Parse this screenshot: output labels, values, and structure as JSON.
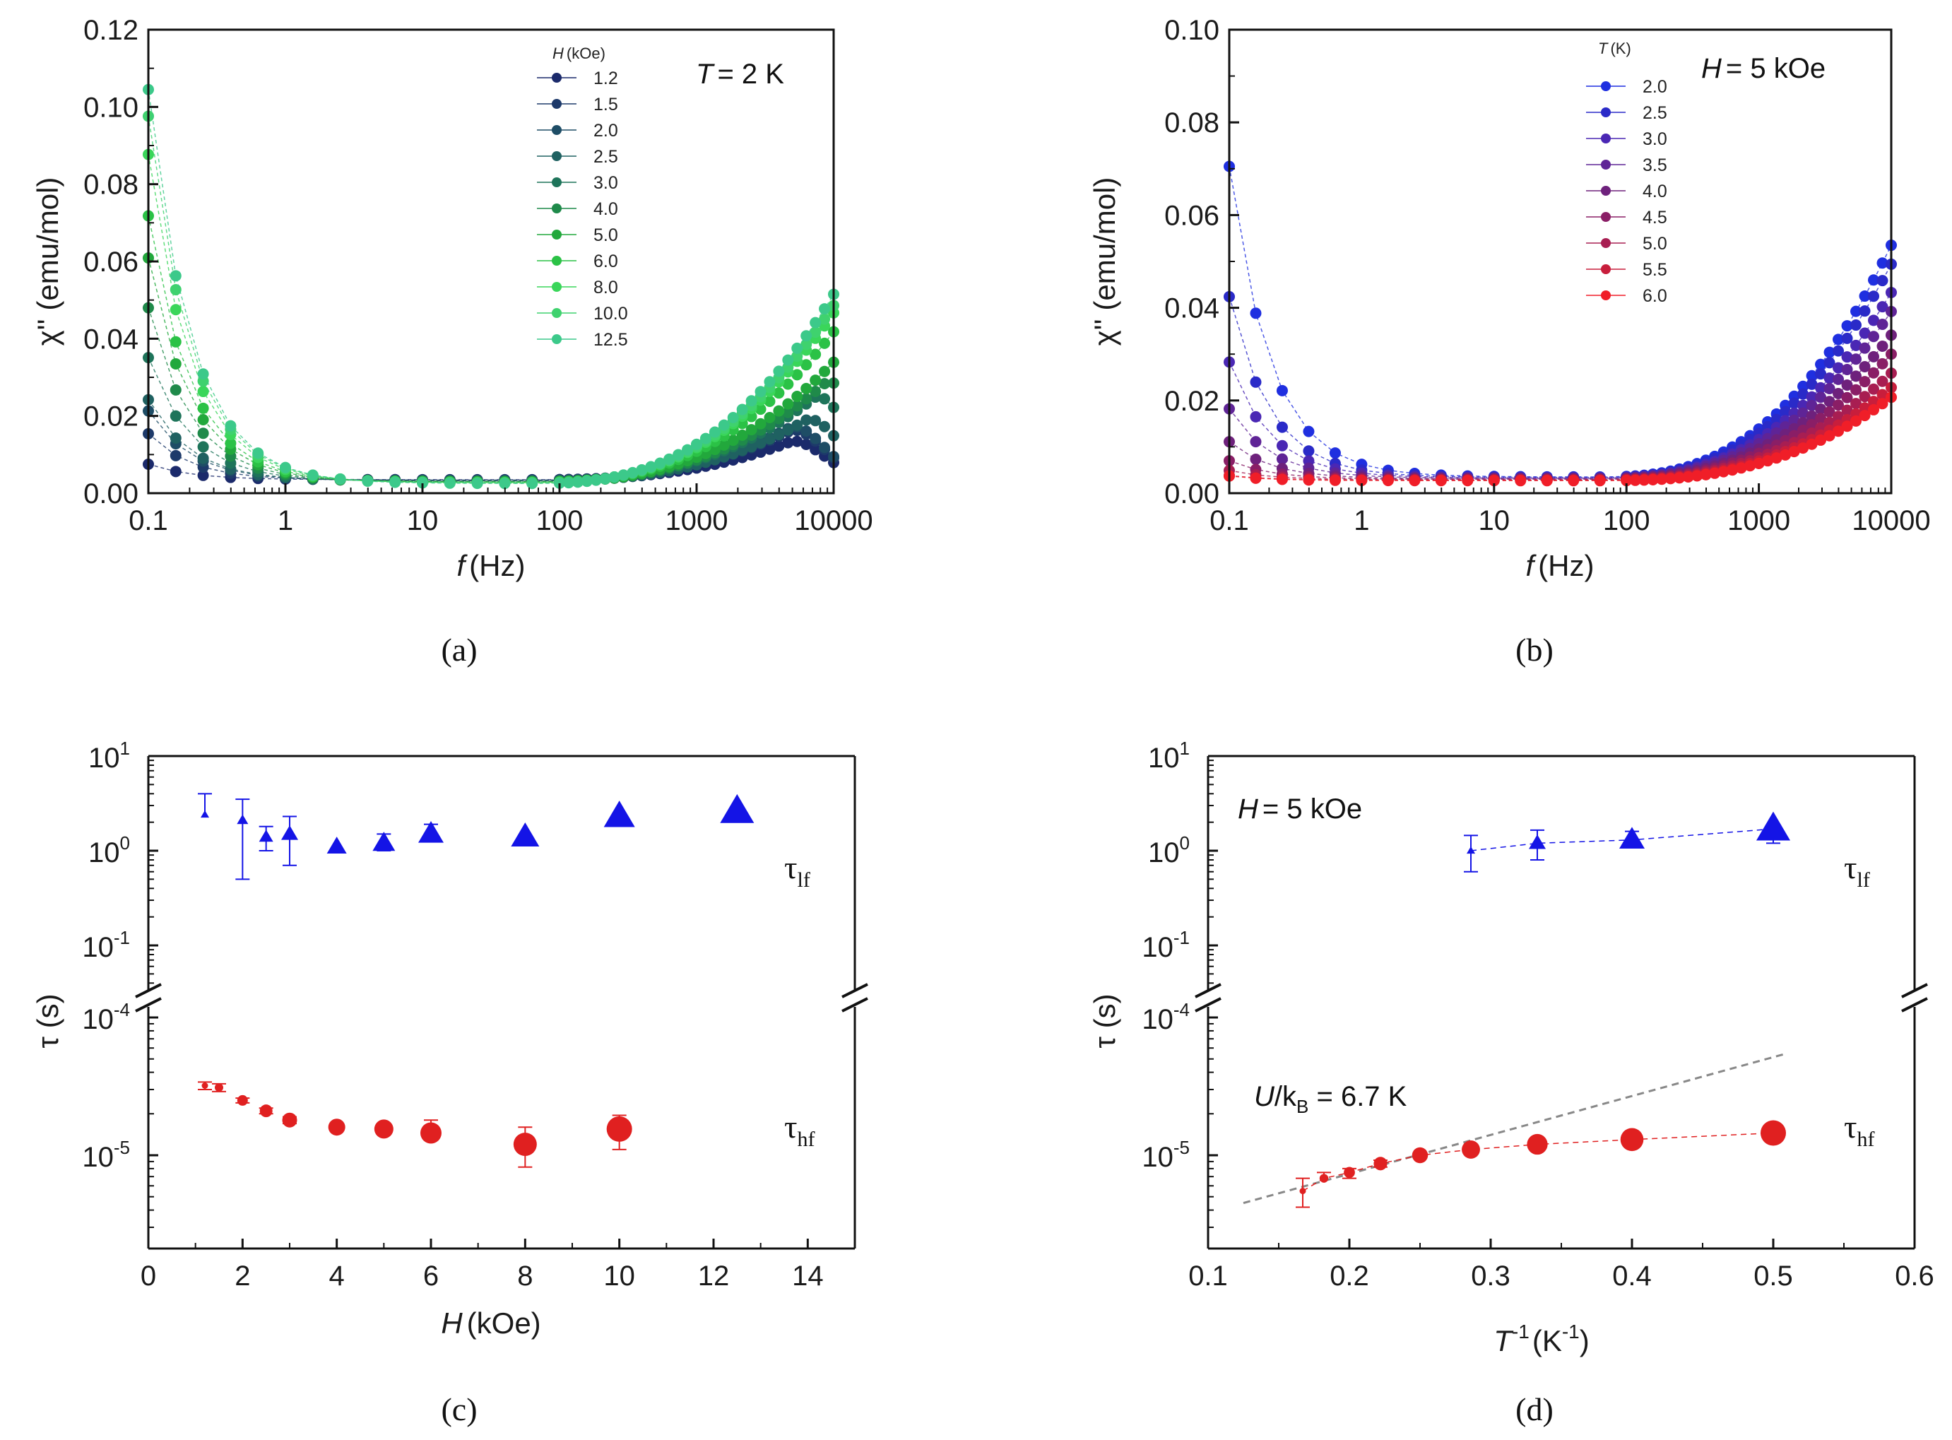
{
  "chart_data": [
    {
      "panel": "(a)",
      "type": "scatter",
      "xscale": "log",
      "xlim": [
        0.1,
        10000
      ],
      "ylim": [
        0.0,
        0.12
      ],
      "xticks": [
        "0.1",
        "1",
        "10",
        "100",
        "1000",
        "10000"
      ],
      "yticks": [
        "0.00",
        "0.02",
        "0.04",
        "0.06",
        "0.08",
        "0.10",
        "0.12"
      ],
      "xlabel_var": "f",
      "xlabel_unit": "(Hz)",
      "ylabel": "χ'' (emu/mol)",
      "annotation_var": "T",
      "annotation_val": "= 2 K",
      "legend_title_var": "H",
      "legend_title_unit": "(kOe)",
      "series": [
        {
          "name": "1.2",
          "color": "#1b2a6b",
          "low": [
            0.004,
            0.007,
            0.004,
            0.003
          ],
          "high": 0.01,
          "peak": 5000
        },
        {
          "name": "1.5",
          "color": "#1d3a6a",
          "low": [
            0.012,
            0.008,
            0.005,
            0.003
          ],
          "high": 0.013,
          "peak": 5000
        },
        {
          "name": "2.0",
          "color": "#1e4d66",
          "low": [
            0.018,
            0.01,
            0.006,
            0.003
          ],
          "high": 0.014,
          "peak": 5000
        },
        {
          "name": "2.5",
          "color": "#1f6161",
          "low": [
            0.021,
            0.012,
            0.007,
            0.004
          ],
          "high": 0.016,
          "peak": 6500
        },
        {
          "name": "3.0",
          "color": "#1e745a",
          "low": [
            0.032,
            0.016,
            0.008,
            0.004
          ],
          "high": 0.022,
          "peak": 7500
        },
        {
          "name": "4.0",
          "color": "#1f8a4a",
          "low": [
            0.045,
            0.022,
            0.011,
            0.005
          ],
          "high": 0.026,
          "peak": 9000
        },
        {
          "name": "5.0",
          "color": "#22a83c",
          "low": [
            0.058,
            0.028,
            0.013,
            0.005
          ],
          "high": 0.031,
          "peak": 10000
        },
        {
          "name": "6.0",
          "color": "#2bc246",
          "low": [
            0.069,
            0.033,
            0.015,
            0.006
          ],
          "high": 0.039,
          "peak": 10000
        },
        {
          "name": "8.0",
          "color": "#3ad65a",
          "low": [
            0.085,
            0.04,
            0.018,
            0.006
          ],
          "high": 0.044,
          "peak": 10000
        },
        {
          "name": "10.0",
          "color": "#3fd26e",
          "low": [
            0.095,
            0.045,
            0.02,
            0.007
          ],
          "high": 0.046,
          "peak": 10000
        },
        {
          "name": "12.5",
          "color": "#3cc98a",
          "low": [
            0.102,
            0.048,
            0.021,
            0.007
          ],
          "high": 0.049,
          "peak": 10000
        }
      ]
    },
    {
      "panel": "(b)",
      "type": "scatter",
      "xscale": "log",
      "xlim": [
        0.1,
        10000
      ],
      "ylim": [
        0.0,
        0.1
      ],
      "xticks": [
        "0.1",
        "1",
        "10",
        "100",
        "1000",
        "10000"
      ],
      "yticks": [
        "0.00",
        "0.02",
        "0.04",
        "0.06",
        "0.08",
        "0.10"
      ],
      "xlabel_var": "f",
      "xlabel_unit": "(Hz)",
      "ylabel": "χ'' (emu/mol)",
      "annotation_var": "H",
      "annotation_val": "= 5 kOe",
      "legend_title_var": "T",
      "legend_title_unit": "(K)",
      "series": [
        {
          "name": "2.0",
          "color": "#1f2fe0",
          "low": [
            0.067,
            0.038,
            0.016,
            0.004
          ],
          "high": 0.05
        },
        {
          "name": "2.5",
          "color": "#2a2ac8",
          "low": [
            0.039,
            0.022,
            0.01,
            0.003
          ],
          "high": 0.046
        },
        {
          "name": "3.0",
          "color": "#4a27b4",
          "low": [
            0.025,
            0.015,
            0.007,
            0.002
          ],
          "high": 0.04
        },
        {
          "name": "3.5",
          "color": "#5f2496",
          "low": [
            0.015,
            0.009,
            0.004,
            0.002
          ],
          "high": 0.036
        },
        {
          "name": "4.0",
          "color": "#6e217c",
          "low": [
            0.008,
            0.005,
            0.003,
            0.001
          ],
          "high": 0.031
        },
        {
          "name": "4.5",
          "color": "#8a1e66",
          "low": [
            0.004,
            0.003,
            0.002,
            0.001
          ],
          "high": 0.027
        },
        {
          "name": "5.0",
          "color": "#a81e52",
          "low": [
            0.002,
            0.002,
            0.001,
            0.001
          ],
          "high": 0.023
        },
        {
          "name": "5.5",
          "color": "#c81e3c",
          "low": [
            0.001,
            0.001,
            0.001,
            0.0
          ],
          "high": 0.02
        },
        {
          "name": "6.0",
          "color": "#f01e28",
          "low": [
            0.001,
            0.001,
            0.0,
            0.0
          ],
          "high": 0.018
        }
      ]
    },
    {
      "panel": "(c)",
      "type": "scatter",
      "xlim": [
        0,
        15
      ],
      "xticks": [
        "0",
        "2",
        "4",
        "6",
        "8",
        "10",
        "12",
        "14"
      ],
      "xlabel_var": "H",
      "xlabel_unit": "(kOe)",
      "ylabel": "τ (s)",
      "yscale": "log, broken axis",
      "upper_yticks": [
        "10",
        "10",
        "10"
      ],
      "upper_yexp": [
        "1",
        "0",
        "-1"
      ],
      "lower_yticks": [
        "10",
        "10"
      ],
      "lower_yexp": [
        "-4",
        "-5"
      ],
      "tau_lf_main": "τ",
      "tau_lf_sub": "lf",
      "tau_hf_main": "τ",
      "tau_hf_sub": "hf",
      "tau_lf": {
        "color": "#1414e6",
        "x": [
          1.2,
          2.0,
          2.5,
          3.0,
          4.0,
          5.0,
          6.0,
          8.0,
          10.0,
          12.5
        ],
        "y": [
          2.4,
          2.1,
          1.4,
          1.5,
          1.1,
          1.2,
          1.5,
          1.4,
          2.3,
          2.6
        ],
        "err_lo": [
          null,
          0.5,
          1.0,
          0.7,
          null,
          1.0,
          null,
          null,
          null,
          null
        ],
        "err_hi": [
          4.0,
          3.5,
          1.8,
          2.3,
          null,
          1.5,
          1.9,
          null,
          null,
          null
        ]
      },
      "tau_hf": {
        "color": "#e02020",
        "x": [
          1.2,
          1.5,
          2.0,
          2.5,
          3.0,
          4.0,
          5.0,
          6.0,
          8.0,
          10.0
        ],
        "y": [
          3.2e-05,
          3.1e-05,
          2.5e-05,
          2.1e-05,
          1.8e-05,
          1.6e-05,
          1.55e-05,
          1.45e-05,
          1.2e-05,
          1.55e-05
        ],
        "err_lo": [
          3e-05,
          2.9e-05,
          2.4e-05,
          2e-05,
          1.7e-05,
          null,
          1.45e-05,
          1.35e-05,
          8.2e-06,
          1.1e-05
        ],
        "err_hi": [
          3.4e-05,
          3.3e-05,
          2.6e-05,
          2.2e-05,
          1.9e-05,
          null,
          1.65e-05,
          1.8e-05,
          1.6e-05,
          1.95e-05
        ]
      }
    },
    {
      "panel": "(d)",
      "type": "scatter",
      "xlim": [
        0.1,
        0.6
      ],
      "xticks": [
        "0.1",
        "0.2",
        "0.3",
        "0.4",
        "0.5",
        "0.6"
      ],
      "xlabel_var": "T",
      "xlabel_sup": "-1",
      "xlabel_unit": "(K",
      "xlabel_unit_sup": "-1",
      "xlabel_close": ")",
      "ylabel": "τ (s)",
      "yscale": "log, broken axis",
      "upper_yticks": [
        "10",
        "10",
        "10"
      ],
      "upper_yexp": [
        "1",
        "0",
        "-1"
      ],
      "lower_yticks": [
        "10",
        "10"
      ],
      "lower_yexp": [
        "-4",
        "-5"
      ],
      "annotation_var": "H",
      "annotation_val": "= 5 kOe",
      "fit_label_var": "U",
      "fit_label_mid": "/k",
      "fit_label_sub": "B",
      "fit_label_val": " = 6.7 K",
      "tau_lf_main": "τ",
      "tau_lf_sub": "lf",
      "tau_hf_main": "τ",
      "tau_hf_sub": "hf",
      "tau_lf": {
        "color": "#1414e6",
        "x": [
          0.286,
          0.333,
          0.4,
          0.5
        ],
        "y": [
          1.0,
          1.2,
          1.3,
          1.7
        ],
        "err_lo": [
          0.6,
          0.8,
          null,
          1.2
        ],
        "err_hi": [
          1.45,
          1.65,
          1.6,
          null
        ]
      },
      "tau_hf": {
        "color": "#e02020",
        "x": [
          0.167,
          0.182,
          0.2,
          0.222,
          0.25,
          0.286,
          0.333,
          0.4,
          0.5
        ],
        "y": [
          5.5e-06,
          6.8e-06,
          7.5e-06,
          8.7e-06,
          1e-05,
          1.1e-05,
          1.2e-05,
          1.3e-05,
          1.45e-05
        ],
        "err_lo": [
          4.2e-06,
          null,
          6.8e-06,
          8.2e-06,
          null,
          null,
          null,
          null,
          null
        ],
        "err_hi": [
          6.8e-06,
          7.5e-06,
          8e-06,
          9.2e-06,
          null,
          null,
          null,
          null,
          null
        ]
      },
      "fit_line": {
        "color": "#888888",
        "x": [
          0.125,
          0.51
        ],
        "y": [
          4.5e-06,
          5.5e-05
        ]
      }
    }
  ]
}
